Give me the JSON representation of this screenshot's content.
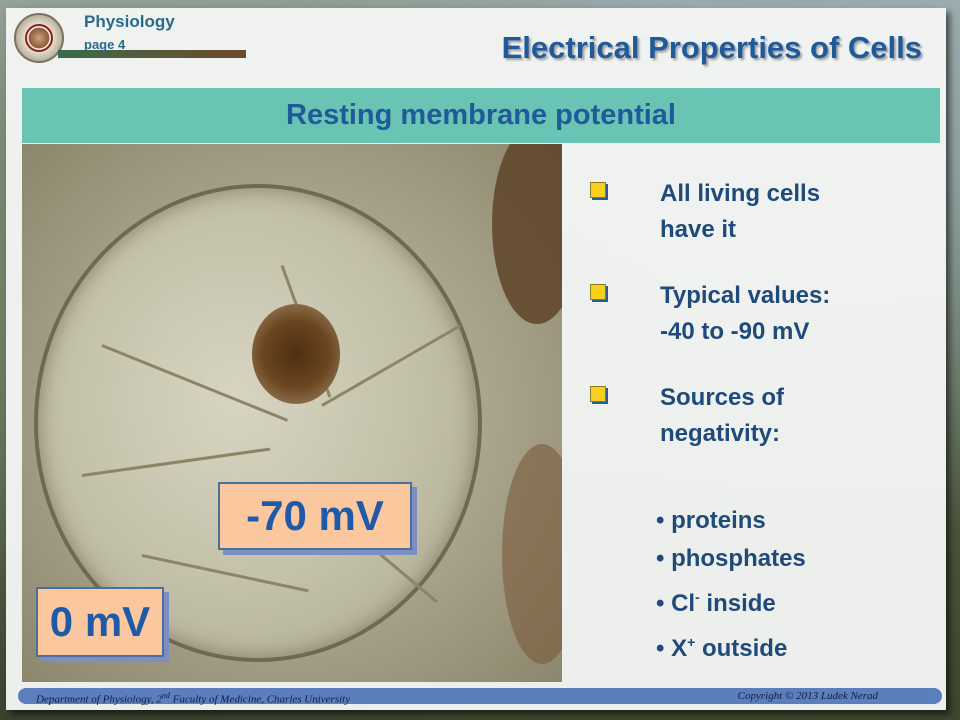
{
  "header": {
    "subject": "Physiology",
    "page": "page 4",
    "title": "Electrical Properties of Cells"
  },
  "banner": {
    "heading": "Resting membrane potential"
  },
  "photo": {
    "inside_value": "-70 mV",
    "outside_value": "0 mV",
    "value_box_fill": "#fbc79e",
    "value_text_color": "#1f5aa8"
  },
  "bullets": [
    {
      "line1": "All living cells",
      "line2": "have it"
    },
    {
      "line1": "Typical values:",
      "line2": "-40 to -90 mV"
    },
    {
      "line1": "Sources of",
      "line2": "negativity:"
    }
  ],
  "sources": {
    "item1": "proteins",
    "item2": "phosphates",
    "item3_base": "Cl",
    "item3_sup": "-",
    "item3_rest": " inside",
    "item4_base": "X",
    "item4_sup": "+",
    "item4_rest": " outside"
  },
  "footer": {
    "left_pre": "Department of Physiology, 2",
    "left_sup": "nd",
    "left_post": " Faculty of Medicine, Charles University",
    "right": "Copyright © 2013 Ludek Nerad"
  },
  "colors": {
    "title": "#1f5a9a",
    "banner": "#6ac4b3",
    "bullet_marker": "#f6d01c",
    "footer_bar": "#5b7fbd"
  }
}
